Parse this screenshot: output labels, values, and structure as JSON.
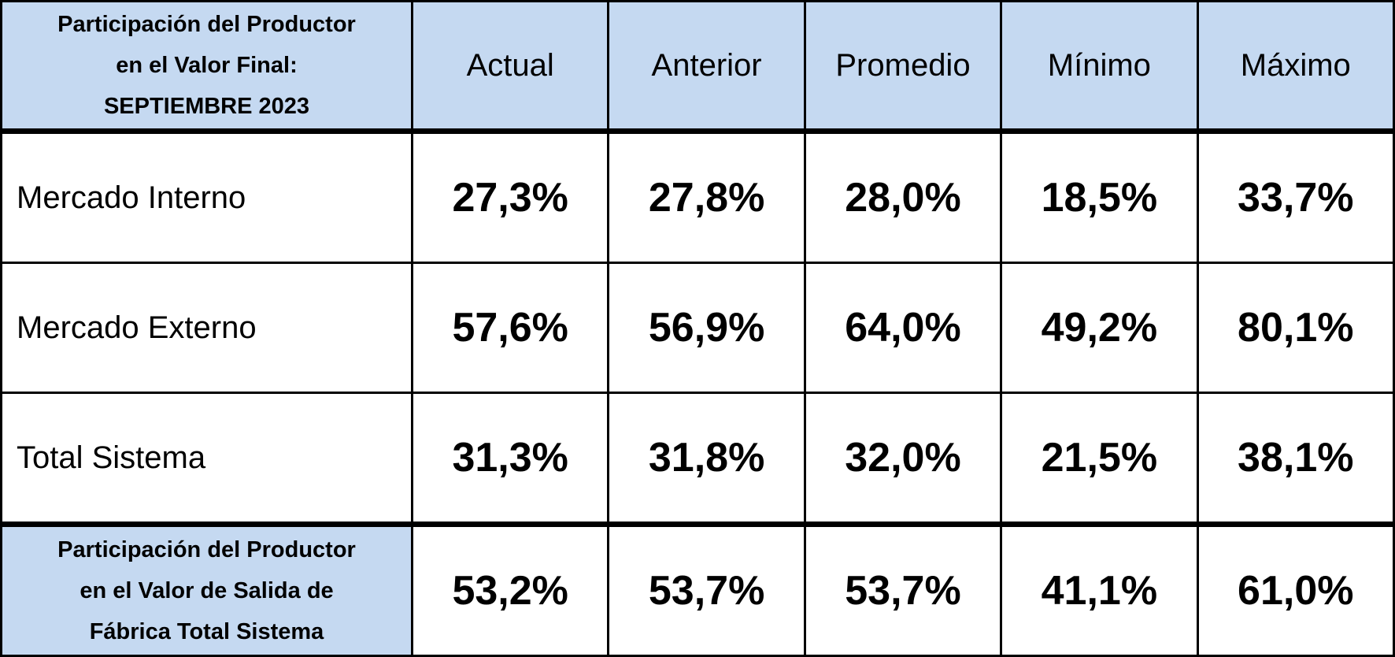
{
  "table": {
    "corner": [
      "Participación del Productor",
      "en el Valor Final:",
      "SEPTIEMBRE 2023"
    ],
    "columns": [
      "Actual",
      "Anterior",
      "Promedio",
      "Mínimo",
      "Máximo"
    ],
    "rows": [
      {
        "label": [
          "Mercado Interno"
        ],
        "values": [
          "27,3%",
          "27,8%",
          "28,0%",
          "18,5%",
          "33,7%"
        ]
      },
      {
        "label": [
          "Mercado Externo"
        ],
        "values": [
          "57,6%",
          "56,9%",
          "64,0%",
          "49,2%",
          "80,1%"
        ]
      },
      {
        "label": [
          "Total Sistema"
        ],
        "values": [
          "31,3%",
          "31,8%",
          "32,0%",
          "21,5%",
          "38,1%"
        ]
      },
      {
        "label": [
          "Participación del Productor",
          "en el Valor de Salida de",
          "Fábrica Total Sistema"
        ],
        "values": [
          "53,2%",
          "53,7%",
          "53,7%",
          "41,1%",
          "61,0%"
        ]
      }
    ]
  }
}
